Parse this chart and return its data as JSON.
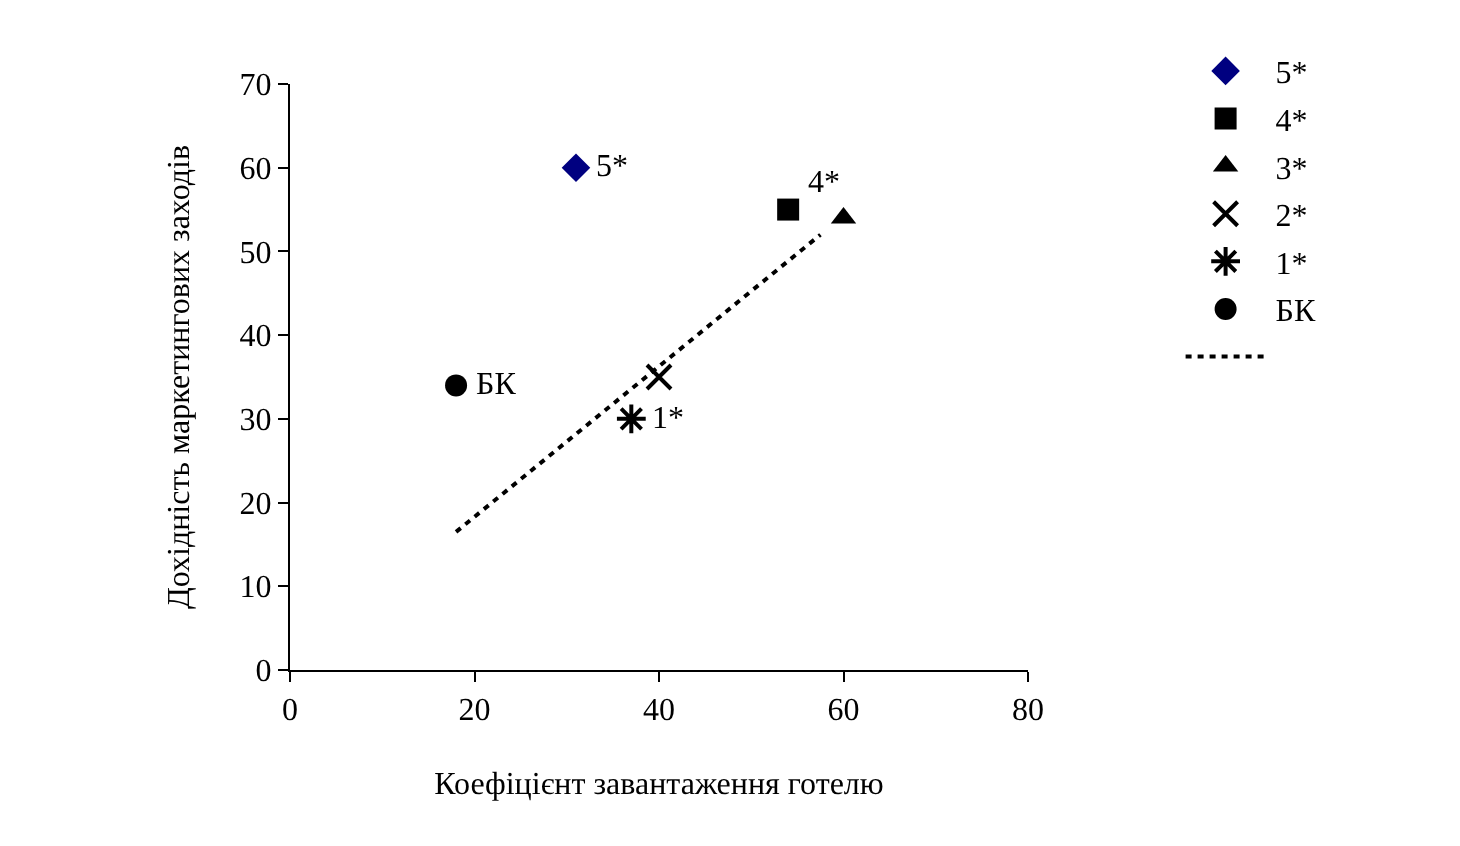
{
  "chart_data": {
    "type": "scatter",
    "xlabel": "Коефіцієнт завантаження готелю",
    "ylabel": "Дохідність маркетингових заходів",
    "xlim": [
      0,
      80
    ],
    "xticks": [
      0,
      20,
      40,
      60,
      80
    ],
    "ylim": [
      0,
      70
    ],
    "yticks": [
      0,
      10,
      20,
      30,
      40,
      50,
      60,
      70
    ],
    "legend": "right",
    "series": [
      {
        "name": "5*",
        "color": "#000080",
        "marker": "diamond",
        "x": [
          31
        ],
        "values": [
          60
        ]
      },
      {
        "name": "4*",
        "color": "#000000",
        "marker": "square",
        "x": [
          54
        ],
        "values": [
          55
        ]
      },
      {
        "name": "3*",
        "color": "#000000",
        "marker": "triangle",
        "x": [
          60
        ],
        "values": [
          54
        ]
      },
      {
        "name": "2*",
        "color": "#000000",
        "marker": "cross",
        "x": [
          40
        ],
        "values": [
          35
        ]
      },
      {
        "name": "1*",
        "color": "#000000",
        "marker": "cross",
        "x": [
          37
        ],
        "values": [
          30
        ]
      },
      {
        "name": "БК",
        "color": "#000000",
        "marker": "circle",
        "x": [
          18
        ],
        "values": [
          34
        ]
      },
      {
        "type": "line",
        "color": "#000000",
        "line_style": "dotted",
        "marker": "none",
        "x": [
          18,
          57.5
        ],
        "values": [
          16.5,
          52
        ]
      }
    ],
    "annotations": [
      {
        "text": "5*",
        "x": 31,
        "y": 60
      },
      {
        "text": "4*",
        "x": 54,
        "y": 55
      },
      {
        "text": "БК",
        "x": 18,
        "y": 34
      },
      {
        "text": "1*",
        "x": 37,
        "y": 30
      }
    ]
  }
}
